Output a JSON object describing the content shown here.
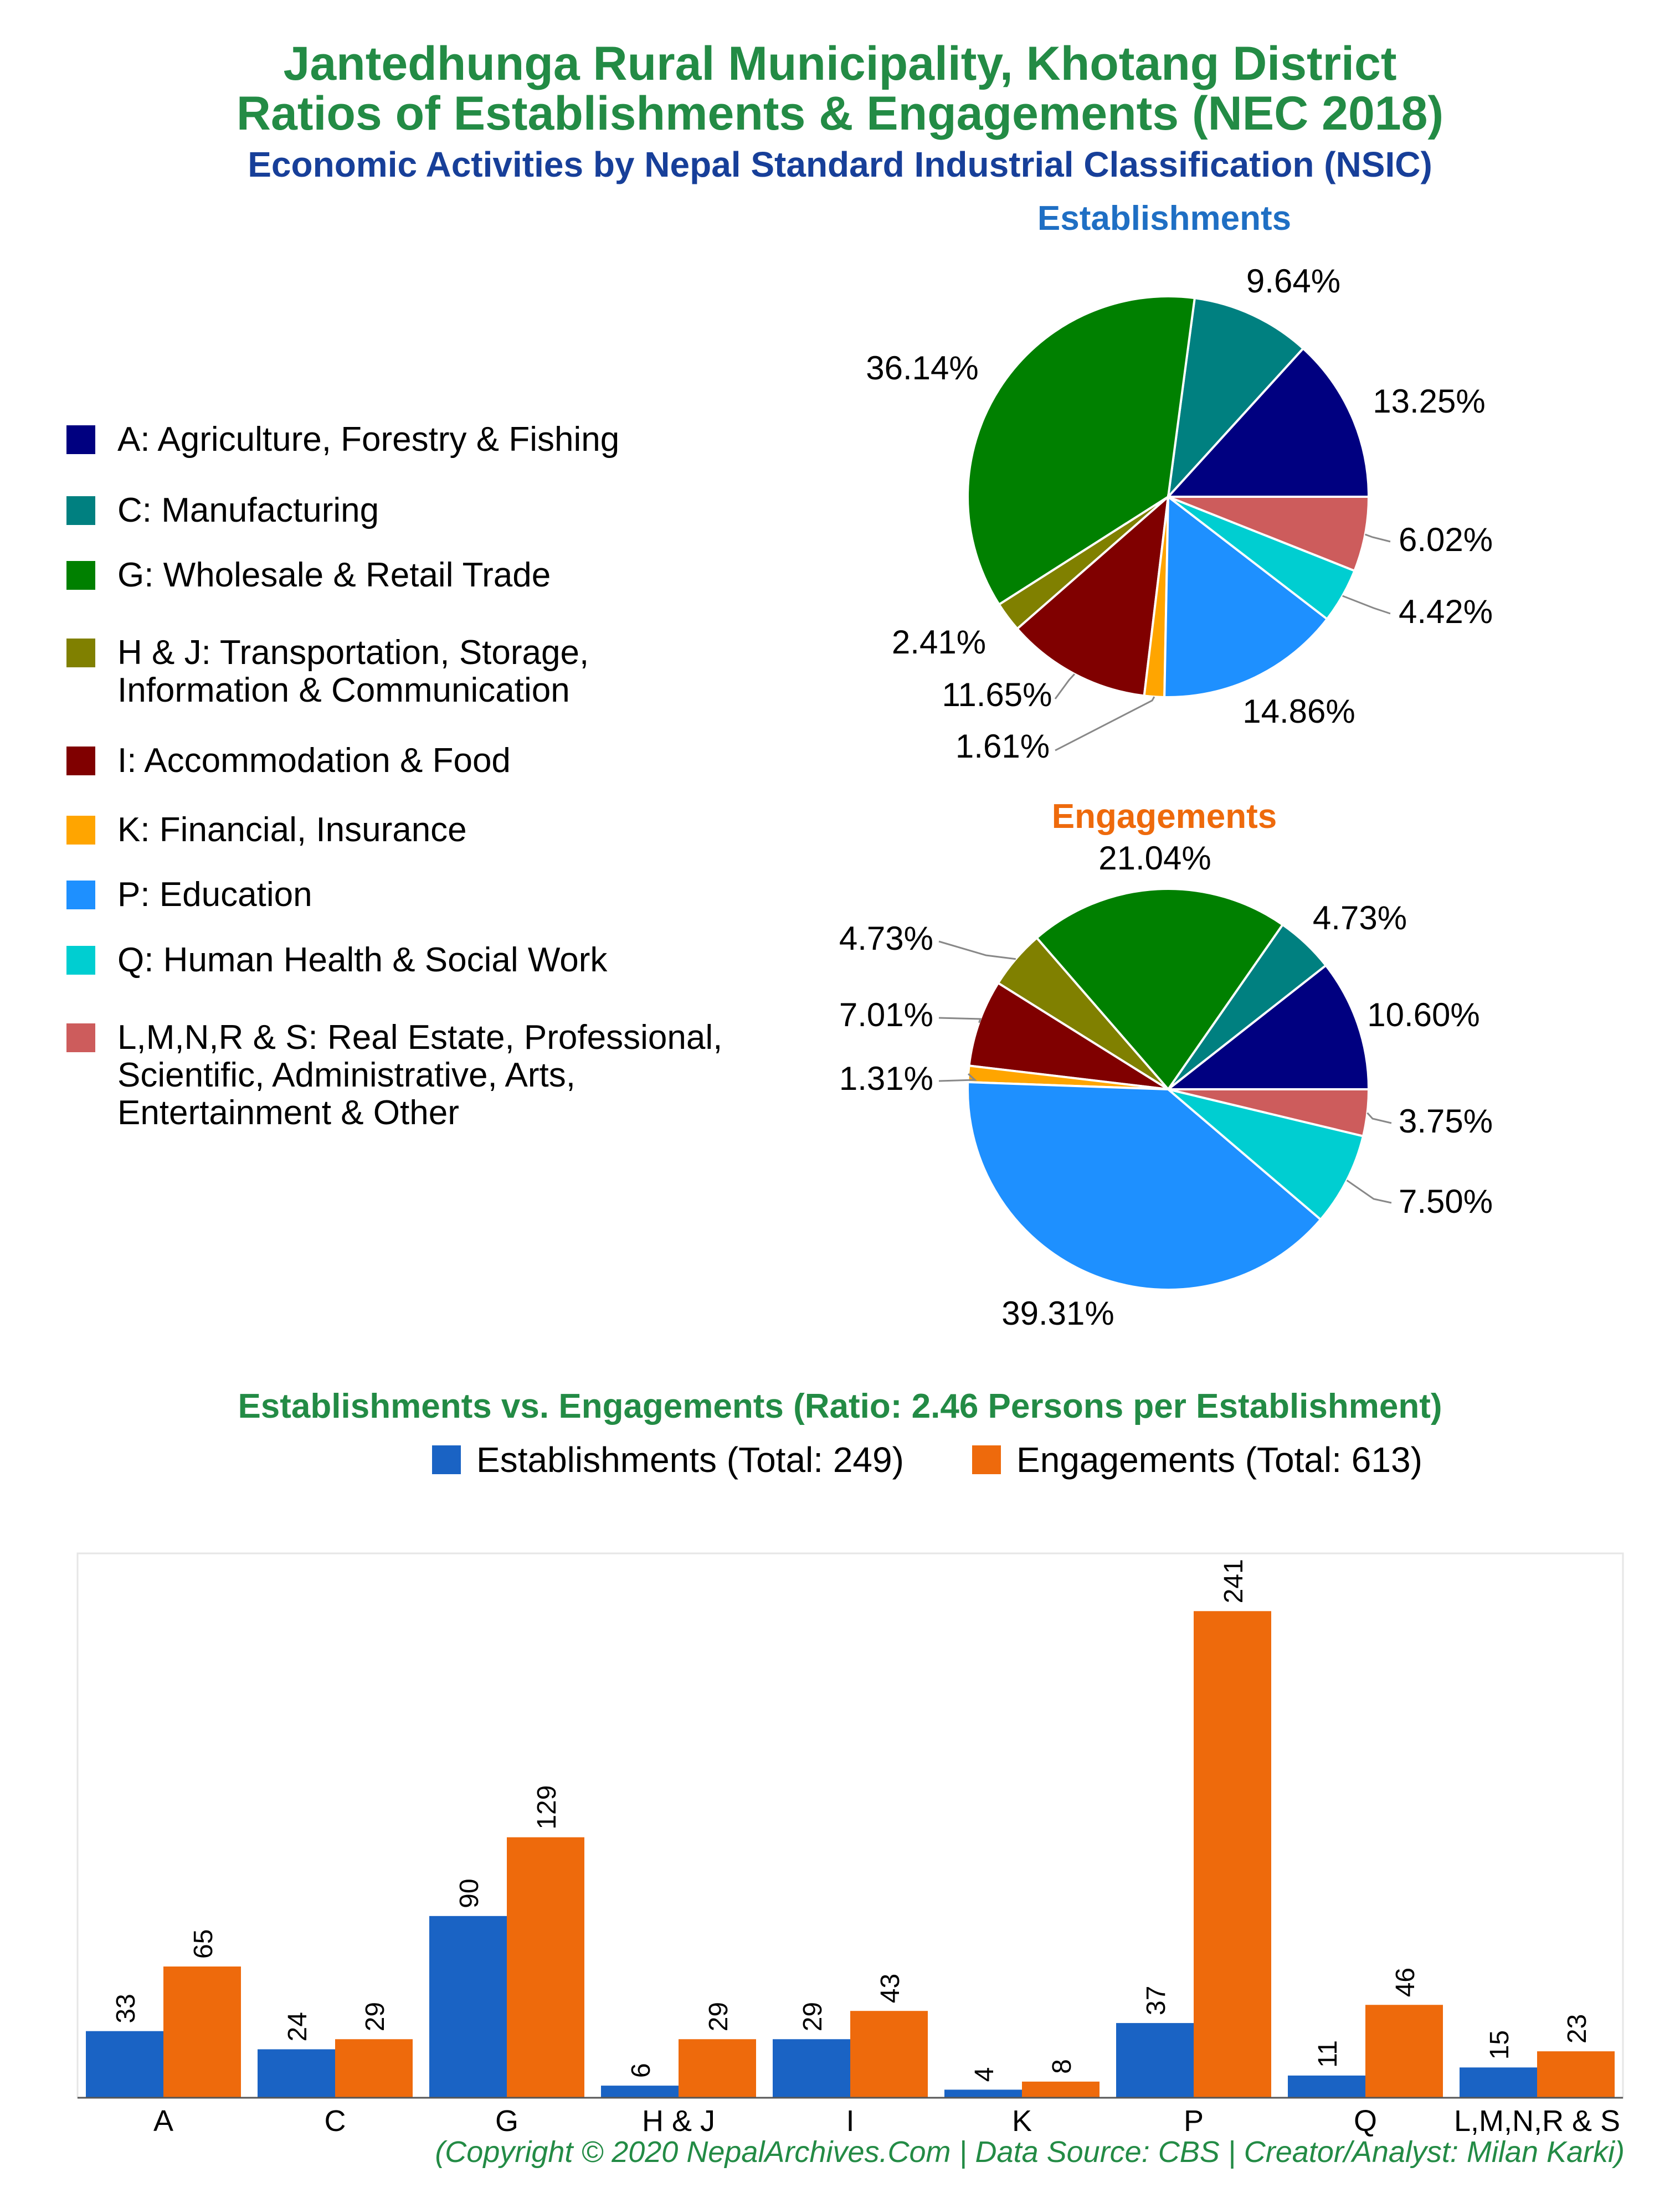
{
  "header": {
    "title_line1": "Jantedhunga Rural Municipality, Khotang District",
    "title_line2": "Ratios of Establishments & Engagements (NEC 2018)",
    "subtitle": "Economic Activities by Nepal Standard Industrial Classification (NSIC)"
  },
  "colors": {
    "title": "#238b45",
    "subtitle": "#173f99",
    "establishments_title": "#1f6fc4",
    "engagements_title": "#ee6a0c",
    "establishments_bar": "#1a63c4",
    "engagements_bar": "#ee6a0c"
  },
  "categories": [
    {
      "code": "A",
      "label": "A: Agriculture, Forestry & Fishing",
      "color": "#000080"
    },
    {
      "code": "C",
      "label": "C: Manufacturing",
      "color": "#008080"
    },
    {
      "code": "G",
      "label": "G: Wholesale & Retail Trade",
      "color": "#008000"
    },
    {
      "code": "H & J",
      "label": "H & J: Transportation, Storage,\nInformation & Communication",
      "color": "#808000"
    },
    {
      "code": "I",
      "label": "I: Accommodation & Food",
      "color": "#800000"
    },
    {
      "code": "K",
      "label": "K: Financial, Insurance",
      "color": "#ffa500"
    },
    {
      "code": "P",
      "label": "P: Education",
      "color": "#1e90ff"
    },
    {
      "code": "Q",
      "label": "Q: Human Health & Social Work",
      "color": "#00ced1"
    },
    {
      "code": "L,M,N,R & S",
      "label": "L,M,N,R & S: Real Estate, Professional,\nScientific, Administrative, Arts,\nEntertainment & Other",
      "color": "#cd5c5c"
    }
  ],
  "chart_data": [
    {
      "type": "pie",
      "title": "Establishments",
      "labels": [
        "A",
        "C",
        "G",
        "H & J",
        "I",
        "K",
        "P",
        "Q",
        "L,M,N,R & S"
      ],
      "values": [
        13.25,
        9.64,
        36.14,
        2.41,
        11.65,
        1.61,
        14.86,
        4.42,
        6.02
      ],
      "value_labels": [
        "13.25%",
        "9.64%",
        "36.14%",
        "2.41%",
        "11.65%",
        "1.61%",
        "14.86%",
        "4.42%",
        "6.02%"
      ],
      "direction": "counterclockwise from 3 o'clock"
    },
    {
      "type": "pie",
      "title": "Engagements",
      "labels": [
        "A",
        "C",
        "G",
        "H & J",
        "I",
        "K",
        "P",
        "Q",
        "L,M,N,R & S"
      ],
      "values": [
        10.6,
        4.73,
        21.04,
        4.73,
        7.01,
        1.31,
        39.31,
        7.5,
        3.75
      ],
      "value_labels": [
        "10.60%",
        "4.73%",
        "21.04%",
        "4.73%",
        "7.01%",
        "1.31%",
        "39.31%",
        "7.50%",
        "3.75%"
      ],
      "direction": "counterclockwise from 3 o'clock"
    },
    {
      "type": "bar",
      "title": "Establishments vs. Engagements (Ratio: 2.46 Persons per Establishment)",
      "categories": [
        "A",
        "C",
        "G",
        "H & J",
        "I",
        "K",
        "P",
        "Q",
        "L,M,N,R & S"
      ],
      "series": [
        {
          "name": "Establishments (Total: 249)",
          "values": [
            33,
            24,
            90,
            6,
            29,
            4,
            37,
            11,
            15
          ]
        },
        {
          "name": "Engagements (Total: 613)",
          "values": [
            65,
            29,
            129,
            29,
            43,
            8,
            241,
            46,
            23
          ]
        }
      ],
      "ylim": [
        0,
        260
      ],
      "grid": false,
      "legend": "top-center"
    }
  ],
  "footer": "(Copyright © 2020 NepalArchives.Com | Data Source: CBS | Creator/Analyst: Milan Karki)"
}
